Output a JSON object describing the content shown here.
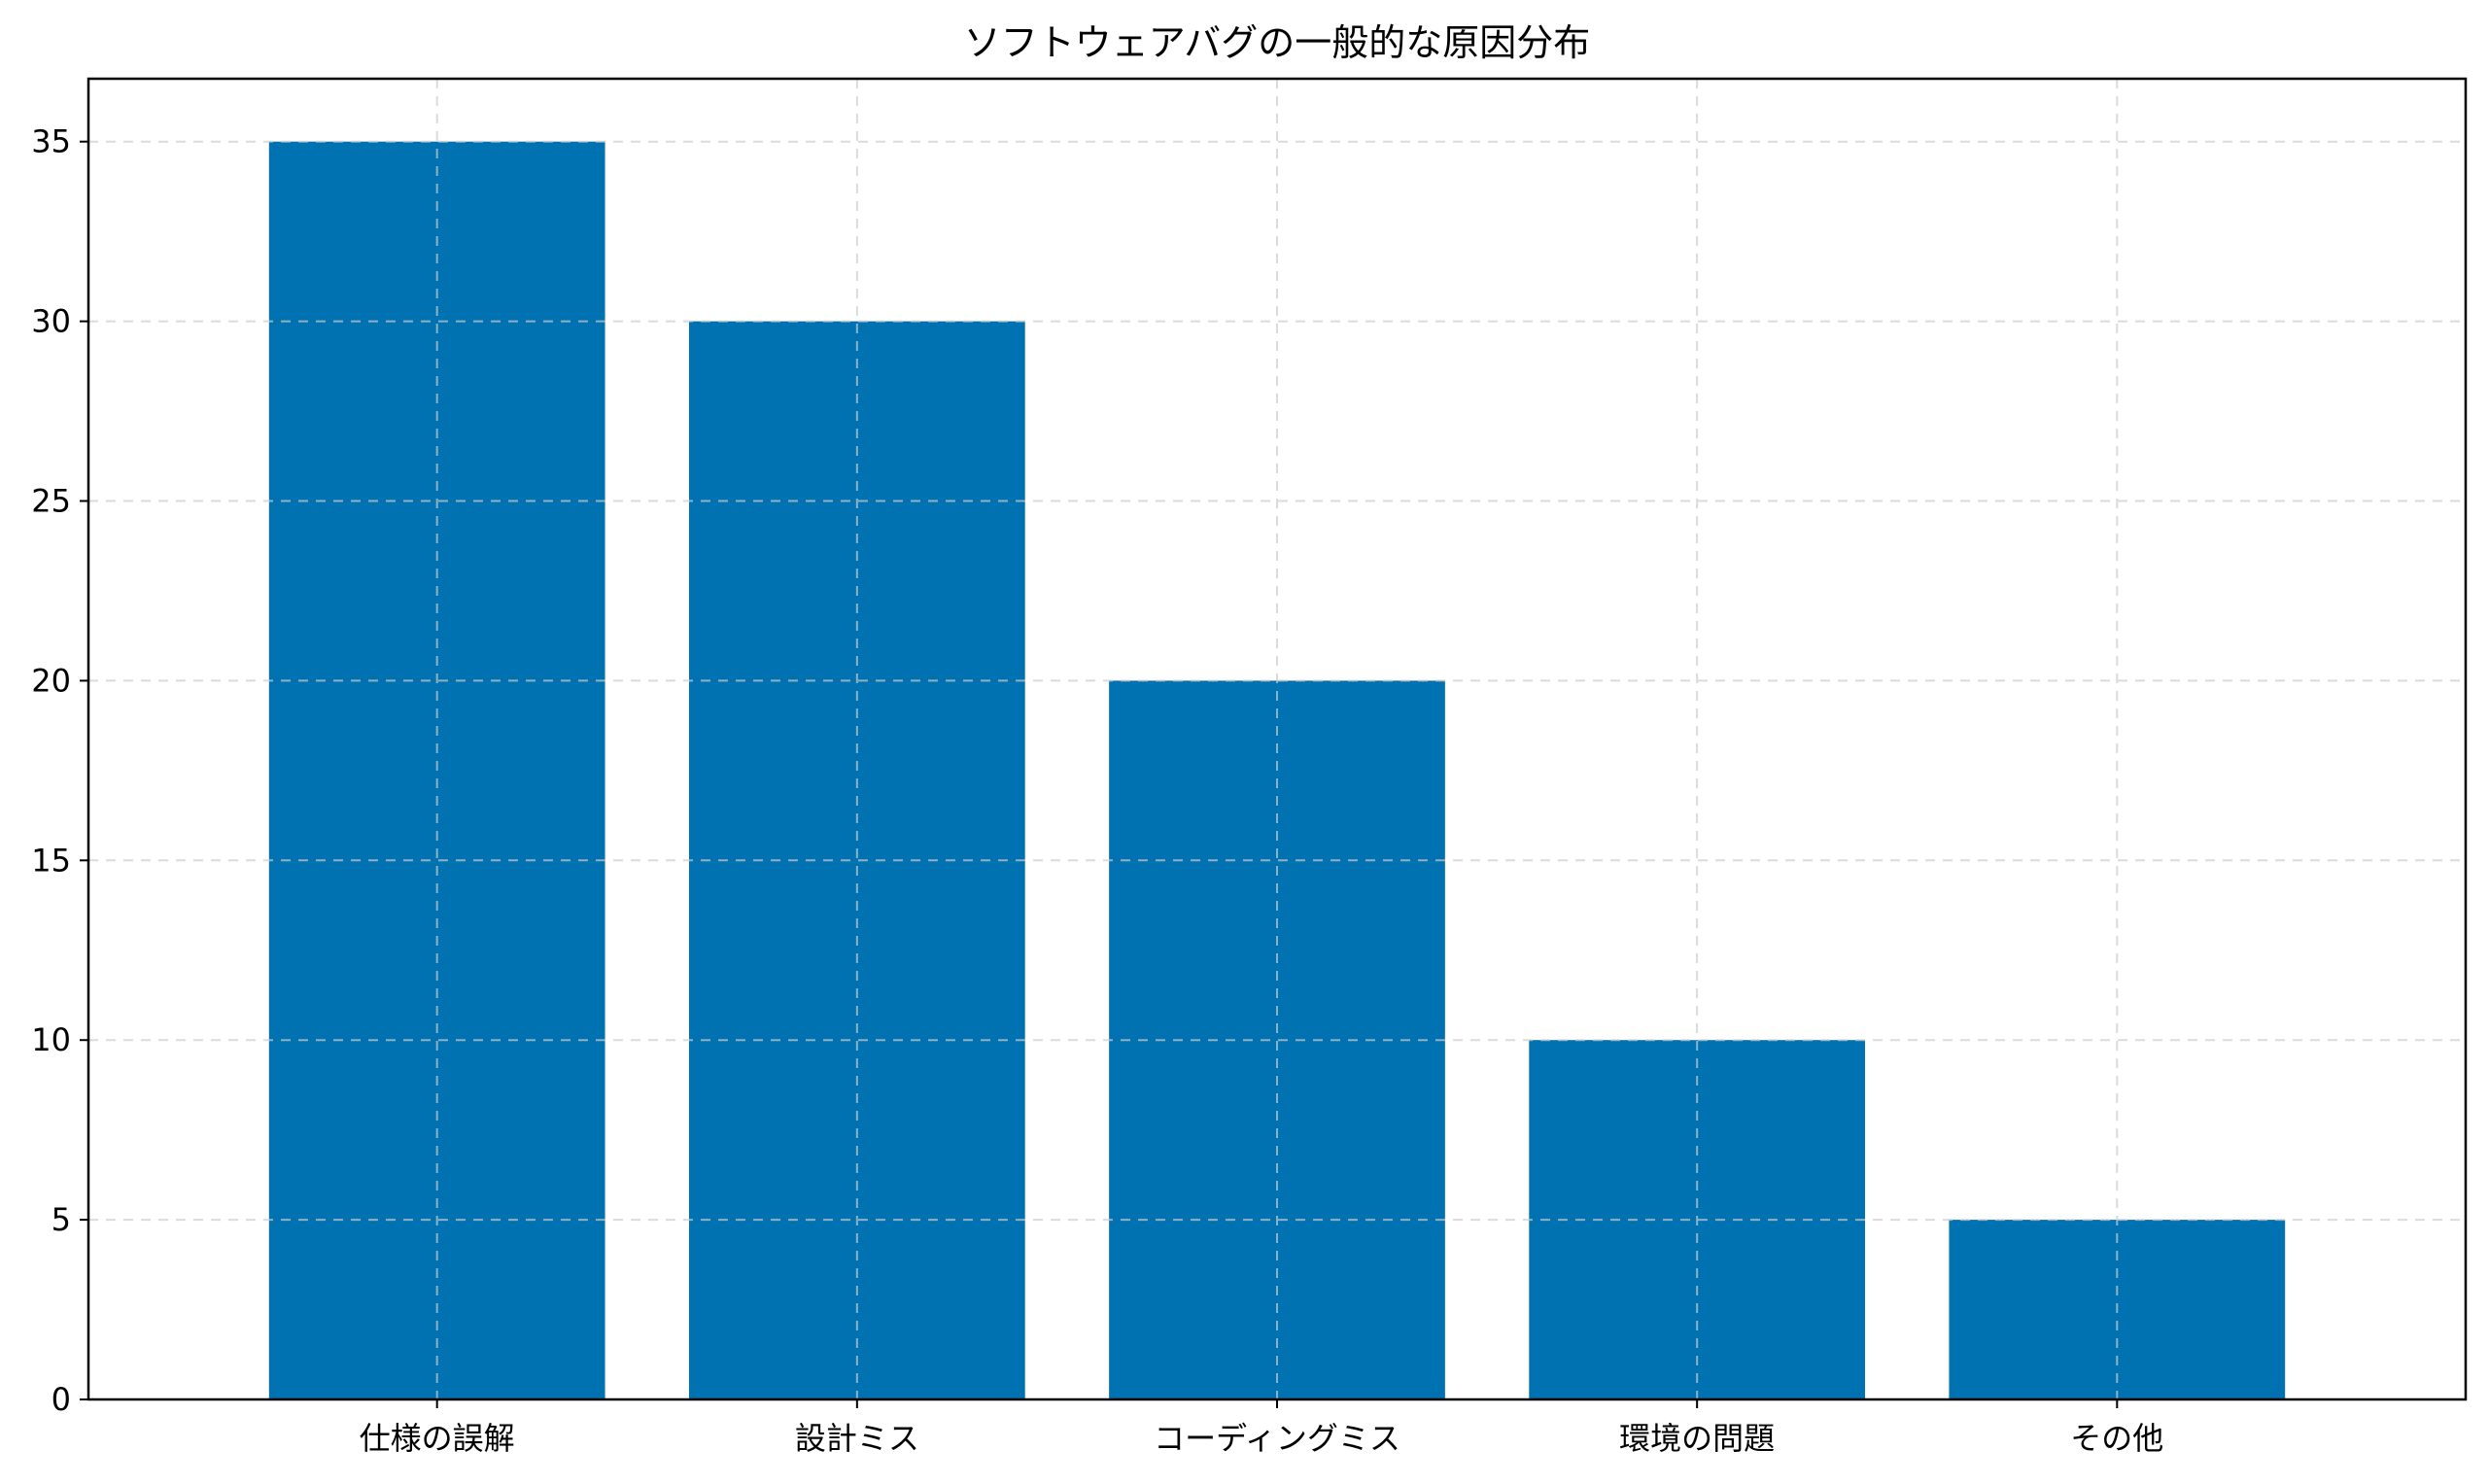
{
  "chart_data": {
    "type": "bar",
    "title": "ソフトウェアバグの一般的な原因分布",
    "xlabel": "",
    "ylabel": "",
    "categories": [
      "仕様の誤解",
      "設計ミス",
      "コーディングミス",
      "環境の問題",
      "その他"
    ],
    "values": [
      35,
      30,
      20,
      10,
      5
    ],
    "ylim": [
      0,
      36.75
    ],
    "yticks": [
      0,
      5,
      10,
      15,
      20,
      25,
      30,
      35
    ],
    "grid": true,
    "legend": "none",
    "bar_color": "#0072b2"
  }
}
